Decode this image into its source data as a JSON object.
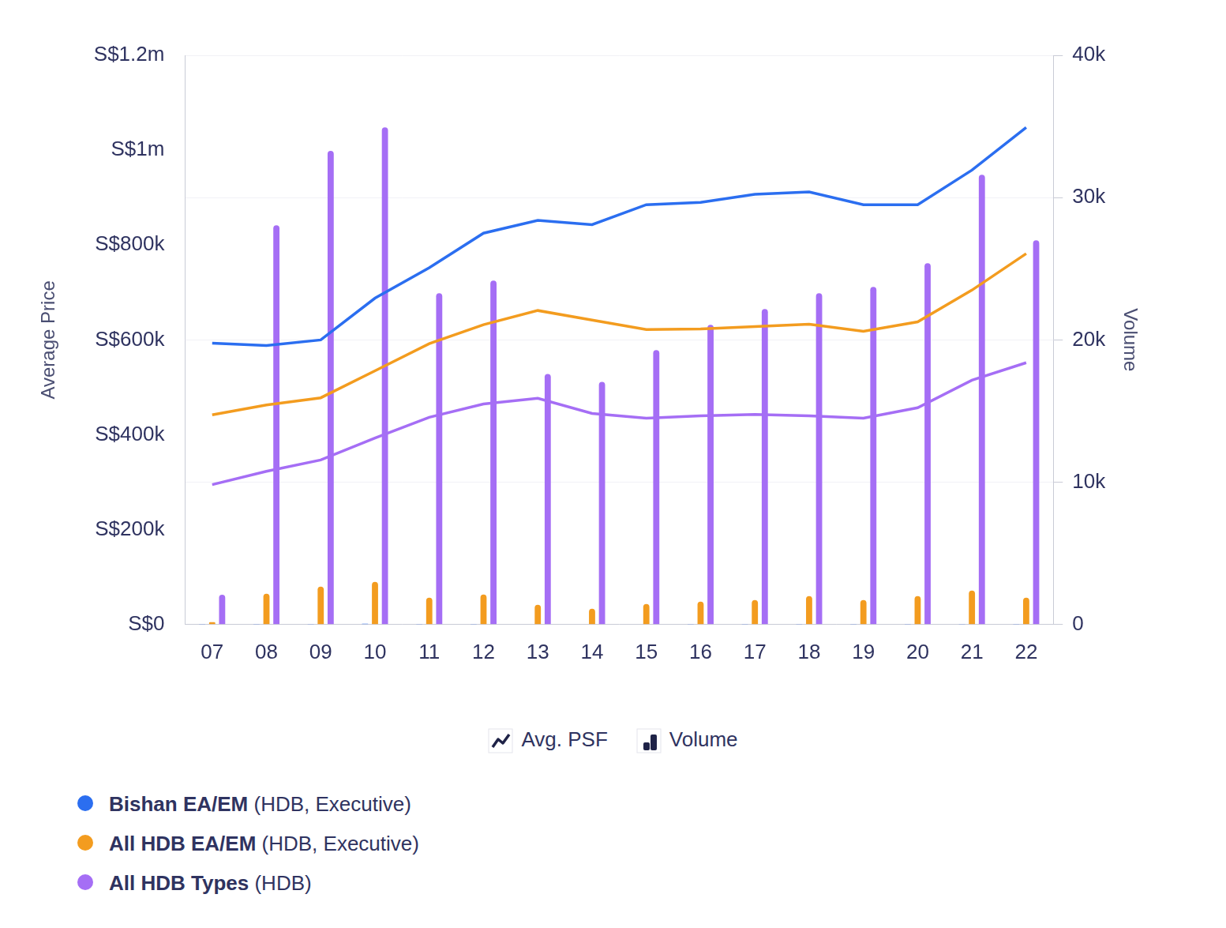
{
  "chart_data": {
    "type": "line",
    "categories": [
      "07",
      "08",
      "09",
      "10",
      "11",
      "12",
      "13",
      "14",
      "15",
      "16",
      "17",
      "18",
      "19",
      "20",
      "21",
      "22"
    ],
    "y_label": "Average Price",
    "y2_label": "Volume",
    "mark_legend": {
      "line": "Avg. PSF",
      "bar": "Volume"
    },
    "legend": "bottom-left",
    "grid": true,
    "ylim": [
      0,
      1200000
    ],
    "yticks": [
      {
        "value": 0,
        "label": "S$0"
      },
      {
        "value": 200000,
        "label": "S$200k"
      },
      {
        "value": 400000,
        "label": "S$400k"
      },
      {
        "value": 600000,
        "label": "S$600k"
      },
      {
        "value": 800000,
        "label": "S$800k"
      },
      {
        "value": 1000000,
        "label": "S$1m"
      },
      {
        "value": 1200000,
        "label": "S$1.2m"
      }
    ],
    "y2lim": [
      0,
      40000
    ],
    "y2ticks": [
      0,
      {
        "value": 10000,
        "label": "10k"
      },
      {
        "value": 20000,
        "label": "20k"
      },
      {
        "value": 30000,
        "label": "30k"
      },
      {
        "value": 40000,
        "label": "40k"
      }
    ],
    "series": [
      {
        "name": "Bishan EA/EM (HDB, Executive)",
        "color": "#2b6ef0",
        "type": "line",
        "values": [
          593000,
          588000,
          600000,
          688000,
          752000,
          825000,
          852000,
          843000,
          885000,
          890000,
          907000,
          912000,
          885000,
          885000,
          958000,
          1048000
        ]
      },
      {
        "name": "All HDB EA/EM (HDB, Executive)",
        "color": "#f39c1f",
        "type": "line",
        "values": [
          442000,
          463000,
          478000,
          535000,
          592000,
          632000,
          662000,
          642000,
          622000,
          623000,
          628000,
          633000,
          618000,
          638000,
          705000,
          782000
        ]
      },
      {
        "name": "All HDB Types (HDB)",
        "color": "#a56ef5",
        "type": "line",
        "values": [
          295000,
          323000,
          347000,
          393000,
          437000,
          465000,
          477000,
          445000,
          435000,
          440000,
          443000,
          440000,
          435000,
          457000,
          515000,
          552000
        ]
      },
      {
        "name": "Bishan EA/EM (HDB, Executive)",
        "color": "#2b6ef0",
        "type": "bar",
        "axis": "y2",
        "values": [
          40,
          45,
          50,
          55,
          40,
          45,
          35,
          30,
          35,
          40,
          40,
          45,
          40,
          45,
          50,
          40
        ]
      },
      {
        "name": "All HDB EA/EM (HDB, Executive)",
        "color": "#f39c1f",
        "type": "bar",
        "axis": "y2",
        "values": [
          170,
          2170,
          2670,
          3000,
          1890,
          2110,
          1390,
          1110,
          1440,
          1610,
          1720,
          2000,
          1720,
          2000,
          2390,
          1890
        ]
      },
      {
        "name": "All HDB Types (HDB)",
        "color": "#a56ef5",
        "type": "bar",
        "axis": "y2",
        "values": [
          2100,
          28050,
          33280,
          34940,
          23280,
          24170,
          17610,
          17060,
          19280,
          21060,
          22170,
          23280,
          23720,
          25390,
          31610,
          27000
        ]
      }
    ]
  }
}
